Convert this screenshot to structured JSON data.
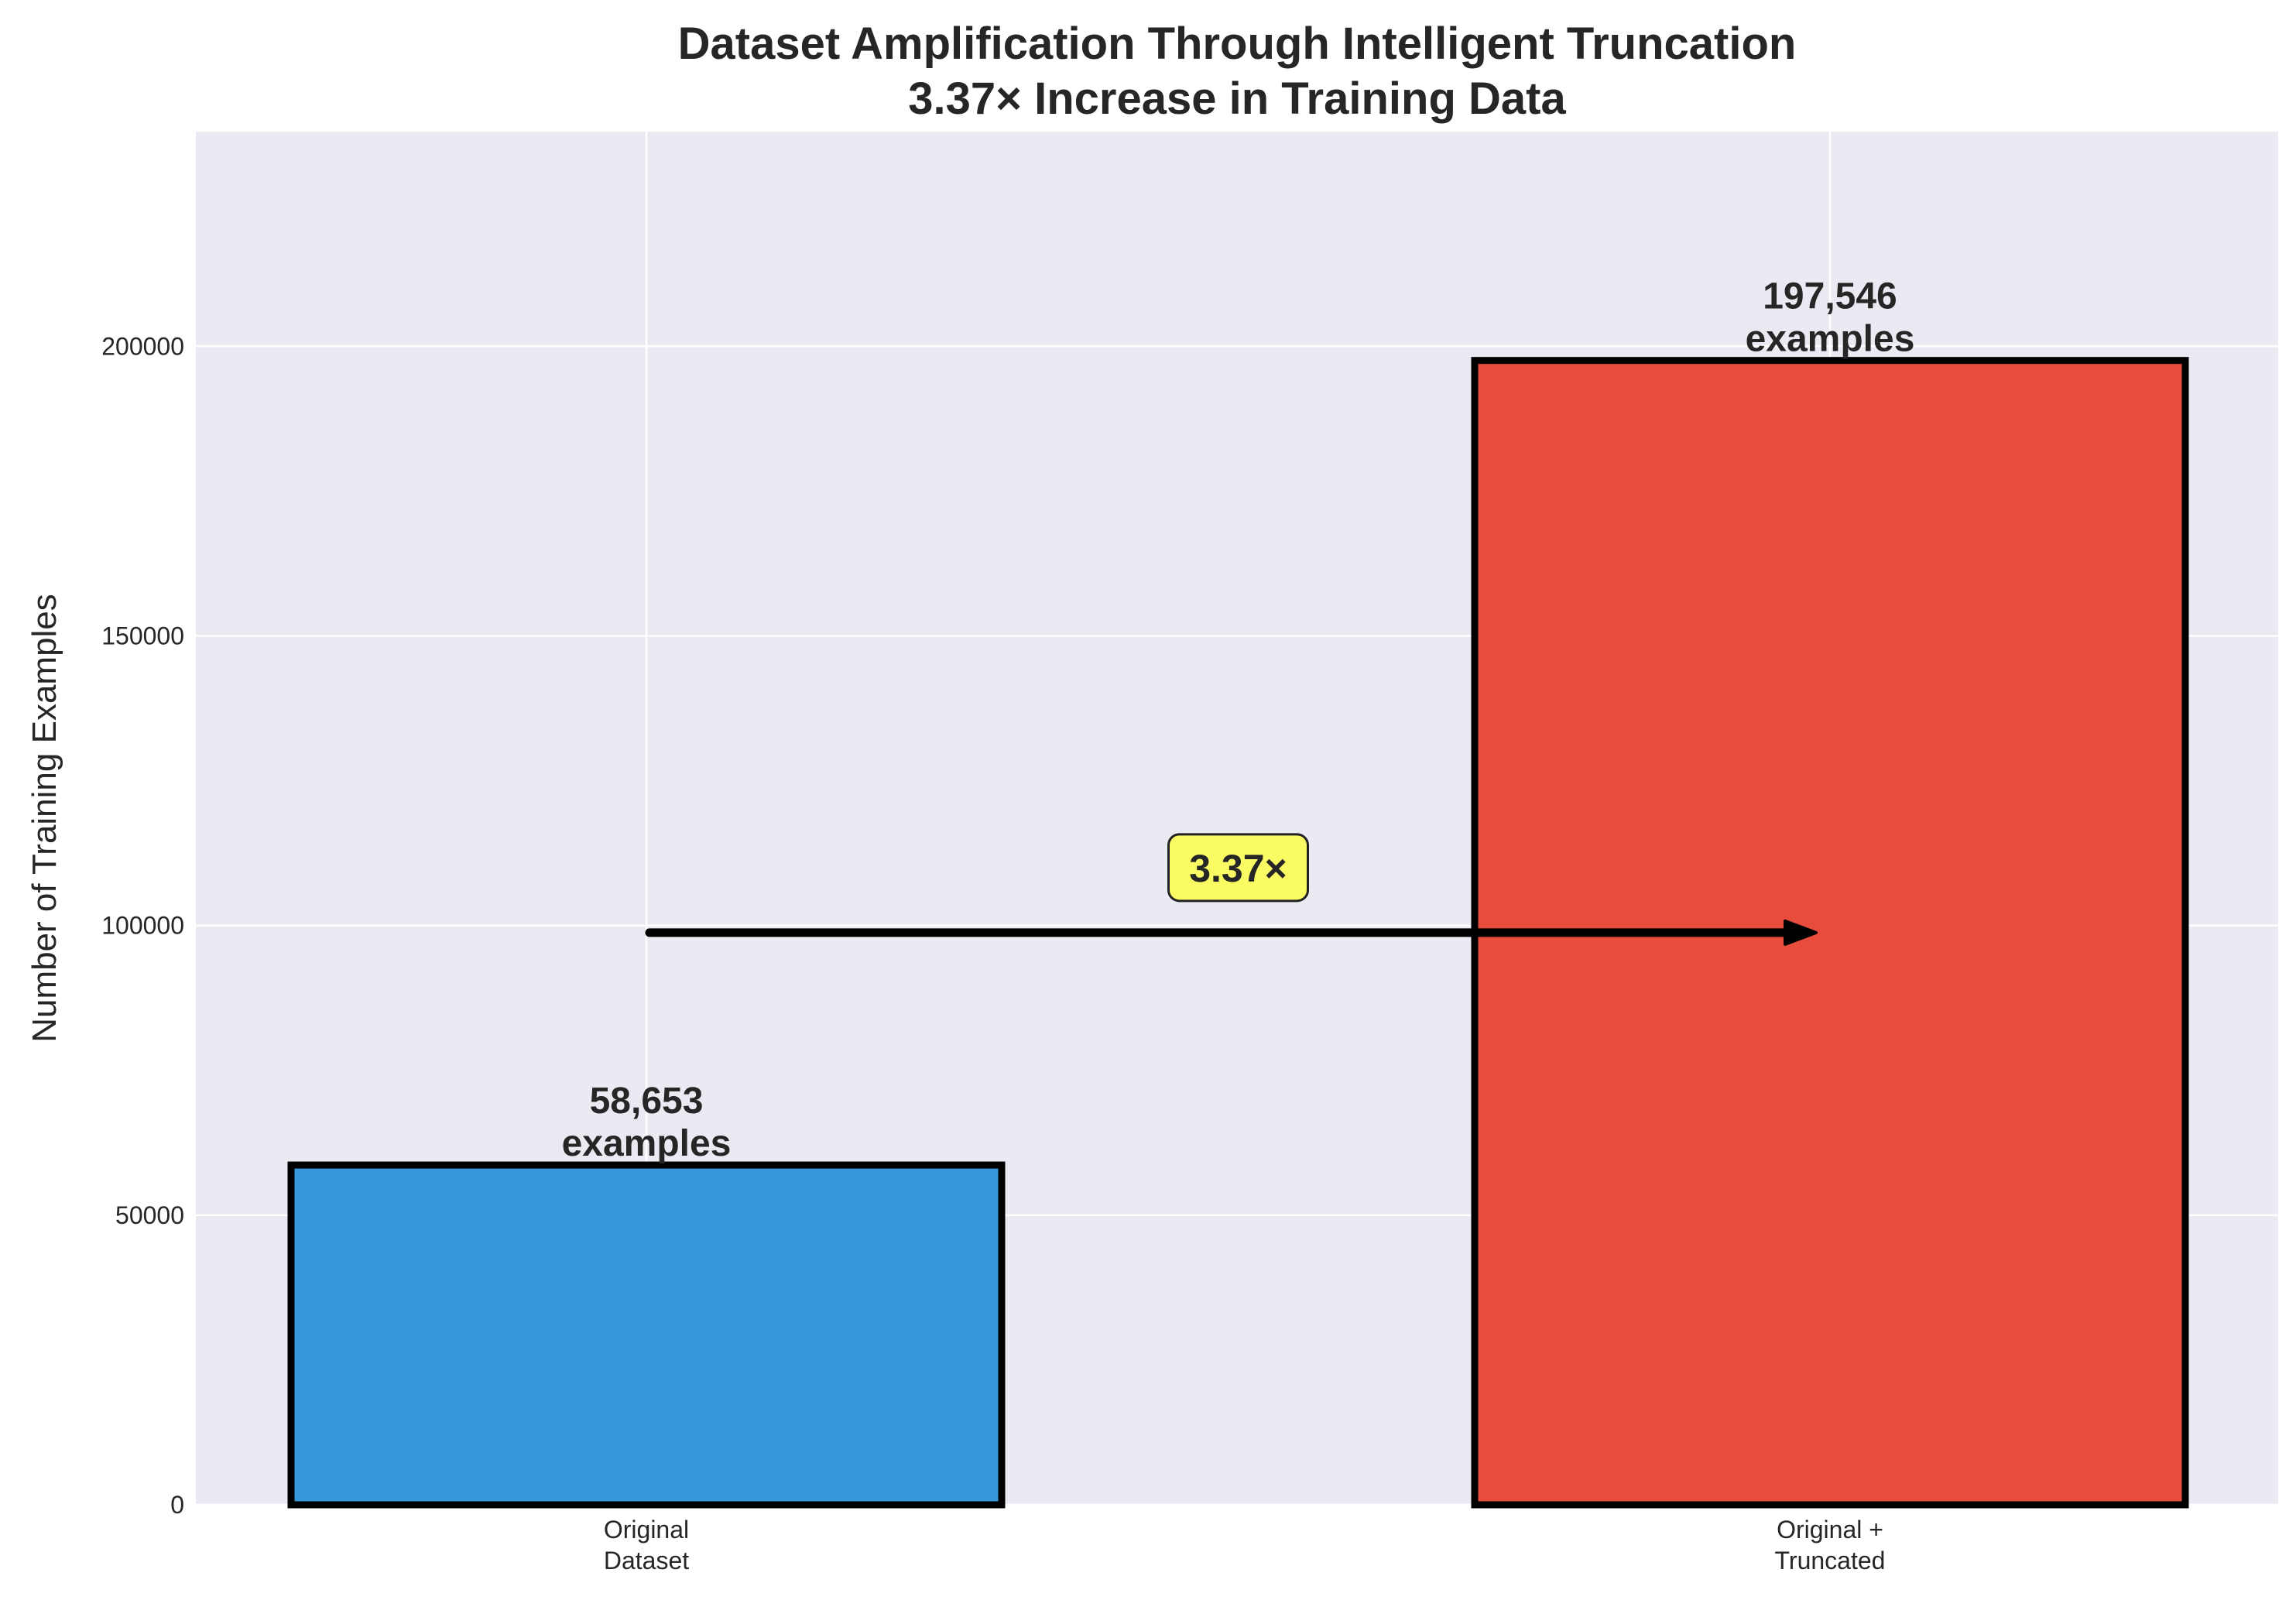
{
  "chart_data": {
    "type": "bar",
    "title": [
      "Dataset Amplification Through Intelligent Truncation",
      "3.37× Increase in Training Data"
    ],
    "xlabel": "",
    "ylabel": "Number of Training Examples",
    "categories": [
      [
        "Original",
        "Dataset"
      ],
      [
        "Original +",
        "Truncated"
      ]
    ],
    "values": [
      58653,
      197546
    ],
    "value_labels": [
      [
        "58,653",
        "examples"
      ],
      [
        "197,546",
        "examples"
      ]
    ],
    "colors": [
      "#3498db",
      "#e74c3c"
    ],
    "ylim": [
      0,
      237055
    ],
    "yticks": [
      0,
      50000,
      100000,
      150000,
      200000
    ],
    "grid": true,
    "background": "#eaeaf2",
    "annotation": {
      "text": "3.37×",
      "arrow_y": 98773,
      "label_y": 110000,
      "box_color": "#ffff40"
    }
  }
}
